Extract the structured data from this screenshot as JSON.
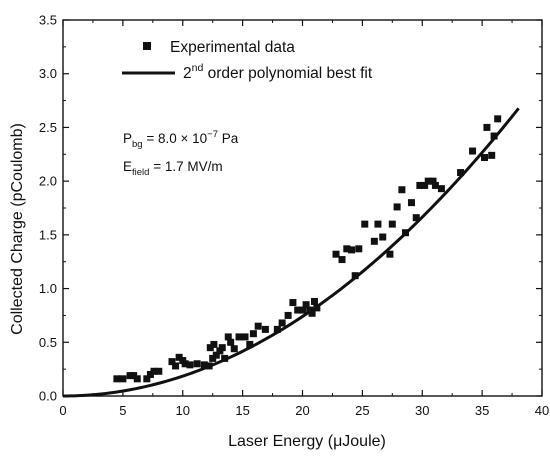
{
  "chart_data": {
    "type": "scatter",
    "xlabel": "Laser Energy (μJoule)",
    "ylabel": "Collected Charge (pCoulomb)",
    "xlim": [
      0,
      40
    ],
    "ylim": [
      0,
      3.5
    ],
    "xticks": [
      "0",
      "5",
      "10",
      "15",
      "20",
      "25",
      "30",
      "35",
      "40"
    ],
    "yticks": [
      "0.0",
      "0.5",
      "1.0",
      "1.5",
      "2.0",
      "2.5",
      "3.0",
      "3.5"
    ],
    "grid": false,
    "legend_position": "top-left",
    "legend": {
      "markers_label": "Experimental data",
      "fit_label_prefix": "2",
      "fit_label_sup": "nd",
      "fit_label_rest": " order polynomial best fit"
    },
    "annotations": {
      "pbg_main": "P",
      "pbg_sub": "bg",
      "pbg_value": " = 8.0 × 10",
      "pbg_exp": "−7",
      "pbg_unit": " Pa",
      "efield_main": "E",
      "efield_sub": "field",
      "efield_value": " = 1.7 MV/m"
    },
    "series": [
      {
        "name": "Experimental data",
        "kind": "scatter",
        "points": [
          [
            4.5,
            0.16
          ],
          [
            5.0,
            0.16
          ],
          [
            5.6,
            0.19
          ],
          [
            5.9,
            0.19
          ],
          [
            6.2,
            0.16
          ],
          [
            7.0,
            0.16
          ],
          [
            7.3,
            0.2
          ],
          [
            7.6,
            0.23
          ],
          [
            8.0,
            0.23
          ],
          [
            9.1,
            0.32
          ],
          [
            9.4,
            0.28
          ],
          [
            9.7,
            0.36
          ],
          [
            10.0,
            0.33
          ],
          [
            10.2,
            0.3
          ],
          [
            10.6,
            0.29
          ],
          [
            11.2,
            0.3
          ],
          [
            11.8,
            0.29
          ],
          [
            12.2,
            0.28
          ],
          [
            12.3,
            0.45
          ],
          [
            12.5,
            0.35
          ],
          [
            12.8,
            0.38
          ],
          [
            12.6,
            0.48
          ],
          [
            13.1,
            0.42
          ],
          [
            13.3,
            0.45
          ],
          [
            13.5,
            0.35
          ],
          [
            13.8,
            0.55
          ],
          [
            14.0,
            0.5
          ],
          [
            14.3,
            0.44
          ],
          [
            14.7,
            0.55
          ],
          [
            15.2,
            0.55
          ],
          [
            15.6,
            0.48
          ],
          [
            15.9,
            0.58
          ],
          [
            16.3,
            0.65
          ],
          [
            16.9,
            0.62
          ],
          [
            17.9,
            0.62
          ],
          [
            18.3,
            0.68
          ],
          [
            18.8,
            0.75
          ],
          [
            19.2,
            0.87
          ],
          [
            19.6,
            0.8
          ],
          [
            20.0,
            0.8
          ],
          [
            20.3,
            0.85
          ],
          [
            20.6,
            0.8
          ],
          [
            20.8,
            0.77
          ],
          [
            21.0,
            0.88
          ],
          [
            21.2,
            0.82
          ],
          [
            22.8,
            1.32
          ],
          [
            23.3,
            1.27
          ],
          [
            23.7,
            1.37
          ],
          [
            24.1,
            1.36
          ],
          [
            24.4,
            1.12
          ],
          [
            24.7,
            1.37
          ],
          [
            25.2,
            1.6
          ],
          [
            26.0,
            1.44
          ],
          [
            26.3,
            1.6
          ],
          [
            26.7,
            1.48
          ],
          [
            27.3,
            1.32
          ],
          [
            27.5,
            1.6
          ],
          [
            27.9,
            1.76
          ],
          [
            28.3,
            1.92
          ],
          [
            28.6,
            1.52
          ],
          [
            29.1,
            1.8
          ],
          [
            29.5,
            1.66
          ],
          [
            29.8,
            1.96
          ],
          [
            30.2,
            1.96
          ],
          [
            30.5,
            2.0
          ],
          [
            30.9,
            2.0
          ],
          [
            31.1,
            1.96
          ],
          [
            31.6,
            1.93
          ],
          [
            33.2,
            2.08
          ],
          [
            34.2,
            2.28
          ],
          [
            35.2,
            2.22
          ],
          [
            35.4,
            2.5
          ],
          [
            35.8,
            2.24
          ],
          [
            36.0,
            2.42
          ],
          [
            36.3,
            2.58
          ]
        ]
      },
      {
        "name": "2nd order polynomial best fit",
        "kind": "line",
        "coefficients": [
          0.0,
          0.0,
          0.00185
        ],
        "x_range": [
          0,
          38.05
        ]
      }
    ]
  }
}
